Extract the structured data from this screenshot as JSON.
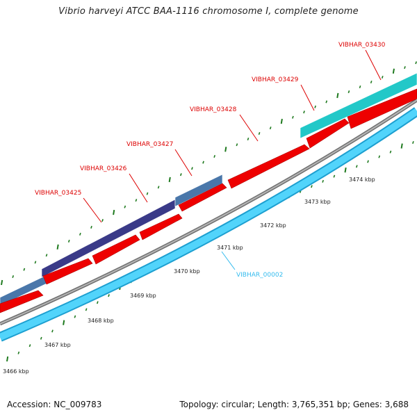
{
  "title": "Vibrio harveyi ATCC BAA-1116 chromosome I, complete genome",
  "footer": {
    "accession": "Accession: NC_009783",
    "summary": "Topology: circular; Length: 3,765,351 bp; Genes: 3,688"
  },
  "scale": {
    "ticks": [
      {
        "kbp": 3466,
        "label": "3466 kbp"
      },
      {
        "kbp": 3467,
        "label": "3467 kbp"
      },
      {
        "kbp": 3468,
        "label": "3468 kbp"
      },
      {
        "kbp": 3469,
        "label": "3469 kbp"
      },
      {
        "kbp": 3470,
        "label": "3470 kbp"
      },
      {
        "kbp": 3471,
        "label": "3471 kbp"
      },
      {
        "kbp": 3472,
        "label": "3472 kbp"
      },
      {
        "kbp": 3473,
        "label": "3473 kbp"
      },
      {
        "kbp": 3474,
        "label": "3474 kbp"
      }
    ]
  },
  "gene_labels": [
    {
      "text": "VIBHAR_03425",
      "color": "#dd0000"
    },
    {
      "text": "VIBHAR_03426",
      "color": "#dd0000"
    },
    {
      "text": "VIBHAR_03427",
      "color": "#dd0000"
    },
    {
      "text": "VIBHAR_03428",
      "color": "#dd0000"
    },
    {
      "text": "VIBHAR_03429",
      "color": "#dd0000"
    },
    {
      "text": "VIBHAR_03430",
      "color": "#dd0000"
    },
    {
      "text": "VIBHAR_00002",
      "color": "#33bbee"
    }
  ],
  "colors": {
    "forward_cds": "#ee0000",
    "reverse_cds": "#33c3f5",
    "backbone": "#888888",
    "tick": "#1f7a1f",
    "steelblue_feature": "#4a77aa",
    "navy_feature": "#3a3a88",
    "teal_feature": "#22c8c8"
  }
}
